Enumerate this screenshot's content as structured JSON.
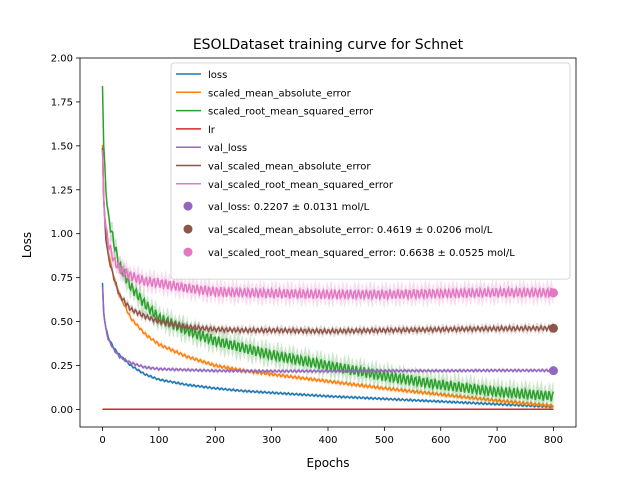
{
  "chart_data": {
    "type": "line",
    "title": "ESOLDataset training curve for Schnet",
    "xlabel": "Epochs",
    "ylabel": "Loss",
    "xlim": [
      -40,
      840
    ],
    "ylim": [
      -0.1,
      2.0
    ],
    "xticks": [
      0,
      100,
      200,
      300,
      400,
      500,
      600,
      700,
      800
    ],
    "yticks": [
      0.0,
      0.25,
      0.5,
      0.75,
      1.0,
      1.25,
      1.5,
      1.75,
      2.0
    ],
    "xtick_labels": [
      "0",
      "100",
      "200",
      "300",
      "400",
      "500",
      "600",
      "700",
      "800"
    ],
    "ytick_labels": [
      "0.00",
      "0.25",
      "0.50",
      "0.75",
      "1.00",
      "1.25",
      "1.50",
      "1.75",
      "2.00"
    ],
    "grid": false,
    "legend_position": "upper-right",
    "series": [
      {
        "name": "loss",
        "color": "#1f77b4",
        "band": 0.01,
        "x": [
          0,
          2,
          5,
          10,
          20,
          30,
          50,
          75,
          100,
          150,
          200,
          250,
          300,
          350,
          400,
          500,
          600,
          700,
          800
        ],
        "y": [
          0.72,
          0.55,
          0.48,
          0.41,
          0.35,
          0.31,
          0.25,
          0.2,
          0.17,
          0.14,
          0.12,
          0.105,
          0.095,
          0.085,
          0.075,
          0.06,
          0.045,
          0.03,
          0.015
        ]
      },
      {
        "name": "scaled_mean_absolute_error",
        "color": "#ff7f0e",
        "band": 0.015,
        "x": [
          0,
          2,
          5,
          10,
          20,
          30,
          50,
          75,
          100,
          150,
          200,
          250,
          300,
          350,
          400,
          500,
          600,
          700,
          800
        ],
        "y": [
          1.5,
          1.2,
          1.05,
          0.9,
          0.75,
          0.65,
          0.52,
          0.43,
          0.37,
          0.3,
          0.25,
          0.22,
          0.2,
          0.18,
          0.16,
          0.12,
          0.085,
          0.05,
          0.02
        ]
      },
      {
        "name": "scaled_root_mean_squared_error",
        "color": "#2ca02c",
        "band": 0.06,
        "x": [
          0,
          2,
          5,
          10,
          20,
          30,
          50,
          75,
          100,
          150,
          200,
          250,
          300,
          350,
          400,
          500,
          600,
          700,
          800
        ],
        "y": [
          1.87,
          1.5,
          1.3,
          1.1,
          0.95,
          0.82,
          0.7,
          0.6,
          0.52,
          0.45,
          0.39,
          0.35,
          0.31,
          0.28,
          0.25,
          0.19,
          0.14,
          0.1,
          0.075
        ]
      },
      {
        "name": "lr",
        "color": "#d62728",
        "band": 0,
        "x": [
          0,
          800
        ],
        "y": [
          0.001,
          0.001
        ]
      },
      {
        "name": "val_loss",
        "color": "#9467bd",
        "band": 0.012,
        "x": [
          0,
          2,
          5,
          10,
          20,
          30,
          50,
          75,
          100,
          150,
          200,
          300,
          400,
          500,
          600,
          700,
          800
        ],
        "y": [
          0.7,
          0.55,
          0.47,
          0.4,
          0.34,
          0.3,
          0.265,
          0.24,
          0.23,
          0.225,
          0.22,
          0.218,
          0.218,
          0.22,
          0.22,
          0.222,
          0.222
        ]
      },
      {
        "name": "val_scaled_mean_absolute_error",
        "color": "#8c564b",
        "band": 0.025,
        "x": [
          0,
          2,
          5,
          10,
          20,
          30,
          50,
          75,
          100,
          150,
          200,
          250,
          300,
          400,
          500,
          600,
          700,
          800
        ],
        "y": [
          1.5,
          1.2,
          1.0,
          0.87,
          0.75,
          0.65,
          0.57,
          0.53,
          0.5,
          0.47,
          0.455,
          0.45,
          0.45,
          0.445,
          0.45,
          0.455,
          0.46,
          0.462
        ]
      },
      {
        "name": "val_scaled_root_mean_squared_error",
        "color": "#e377c2",
        "band": 0.055,
        "x": [
          0,
          2,
          5,
          10,
          20,
          30,
          50,
          75,
          100,
          150,
          200,
          250,
          300,
          400,
          500,
          600,
          700,
          800
        ],
        "y": [
          1.45,
          1.2,
          1.05,
          0.95,
          0.85,
          0.8,
          0.76,
          0.73,
          0.72,
          0.69,
          0.67,
          0.665,
          0.66,
          0.655,
          0.655,
          0.66,
          0.665,
          0.664
        ]
      }
    ],
    "final_markers": [
      {
        "name": "val_loss: 0.2207 ± 0.0131 mol/L",
        "color": "#9467bd",
        "x": 800,
        "y": 0.2207
      },
      {
        "name": "val_scaled_mean_absolute_error: 0.4619 ± 0.0206 mol/L",
        "color": "#8c564b",
        "x": 800,
        "y": 0.4619
      },
      {
        "name": "val_scaled_root_mean_squared_error: 0.6638 ± 0.0525 mol/L",
        "color": "#e377c2",
        "x": 800,
        "y": 0.6638
      }
    ]
  }
}
